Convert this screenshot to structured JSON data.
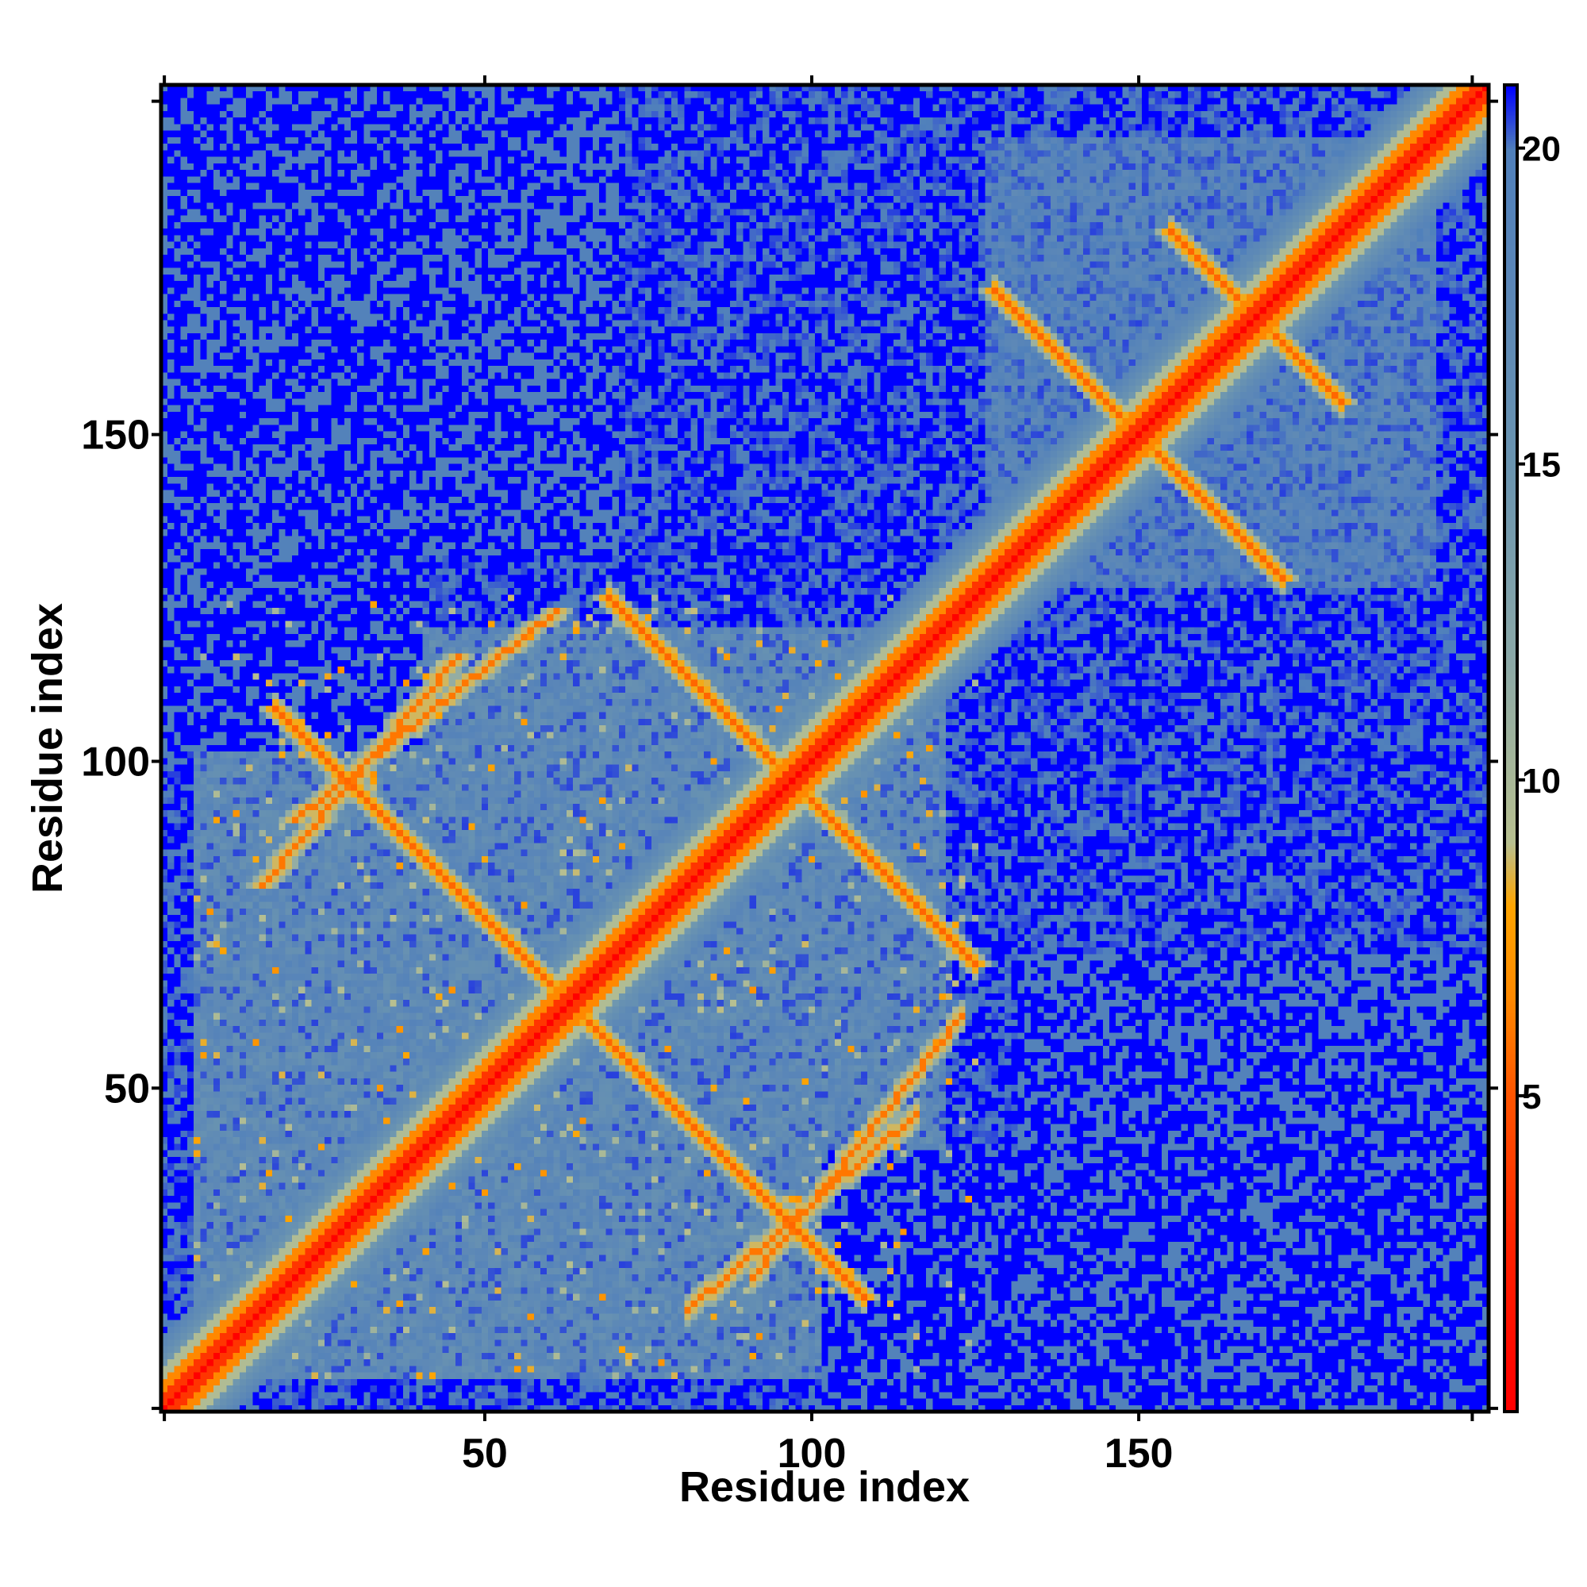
{
  "chart_data": {
    "type": "heatmap",
    "title": "",
    "xlabel": "Residue index",
    "ylabel": "Residue index",
    "n_residues": 203,
    "xlim": [
      1,
      203
    ],
    "ylim": [
      1,
      203
    ],
    "x_ticks": [
      50,
      100,
      150
    ],
    "y_ticks": [
      50,
      100,
      150
    ],
    "colorbar": {
      "ticks": [
        5,
        10,
        15,
        20
      ],
      "range": [
        0,
        21
      ],
      "stops": [
        {
          "value": 0,
          "color": "#ff0000"
        },
        {
          "value": 2.5,
          "color": "#ff2000"
        },
        {
          "value": 5,
          "color": "#ff5500"
        },
        {
          "value": 6.5,
          "color": "#ff8800"
        },
        {
          "value": 8,
          "color": "#ffa500"
        },
        {
          "value": 9,
          "color": "#b8c090"
        },
        {
          "value": 12,
          "color": "#8aa8a8"
        },
        {
          "value": 15,
          "color": "#6a94b0"
        },
        {
          "value": 18,
          "color": "#5a86b8"
        },
        {
          "value": 20,
          "color": "#5080bb"
        },
        {
          "value": 21,
          "color": "#0000ff"
        }
      ]
    },
    "features": {
      "description_values": "pairwise distances between residues; diagonal ~0, far pairs saturate at 21",
      "antiparallel_contacts": [
        {
          "center": [
            149,
            149
          ],
          "half_length": 22
        },
        {
          "center": [
            167,
            167
          ],
          "half_length": 13
        },
        {
          "center": [
            62,
            62
          ],
          "half_length": 45
        },
        {
          "center": [
            96,
            96
          ],
          "half_length": 28
        }
      ],
      "parallel_contacts": [
        {
          "from": [
            15,
            80
          ],
          "to": [
            45,
            115
          ]
        },
        {
          "from": [
            20,
            90
          ],
          "to": [
            60,
            122
          ]
        }
      ]
    },
    "grid": false,
    "legend": "colorbar-right"
  }
}
